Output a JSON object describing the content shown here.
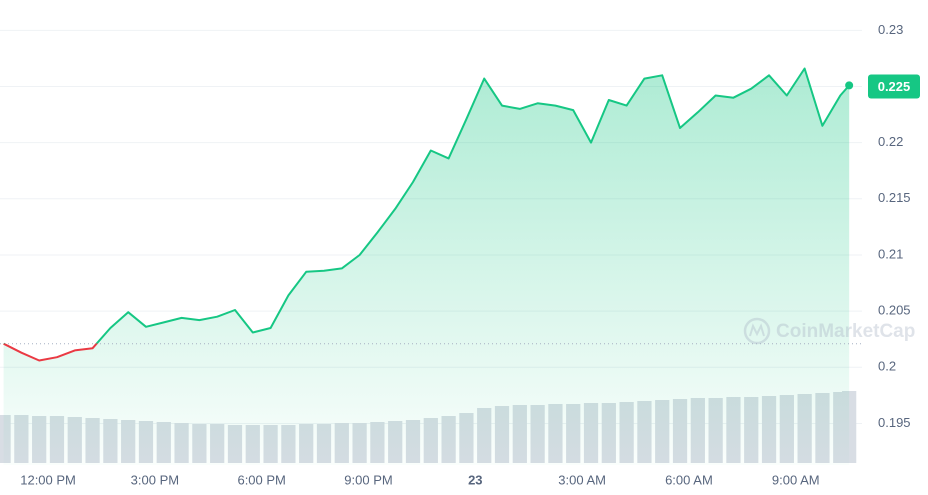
{
  "chart_data": {
    "type": "line",
    "x": [
      -1.25,
      -0.75,
      -0.25,
      0.25,
      0.75,
      1.25,
      1.75,
      2.25,
      2.75,
      3.25,
      3.75,
      4.25,
      4.75,
      5.25,
      5.75,
      6.25,
      6.75,
      7.25,
      7.75,
      8.25,
      8.75,
      9.25,
      9.75,
      10.25,
      10.75,
      11.25,
      11.75,
      12.25,
      12.75,
      13.25,
      13.75,
      14.25,
      14.75,
      15.25,
      15.75,
      16.25,
      16.75,
      17.25,
      17.75,
      18.25,
      18.75,
      19.25,
      19.75,
      20.25,
      20.75,
      21.25,
      21.75,
      22.25,
      22.5
    ],
    "series": [
      {
        "values": [
          0.2021,
          0.2013,
          0.2006,
          0.2009,
          0.2015,
          0.2017,
          0.2035,
          0.2049,
          0.2036,
          0.204,
          0.2044,
          0.2042,
          0.2045,
          0.2051,
          0.2031,
          0.2035,
          0.2064,
          0.2085,
          0.2086,
          0.2088,
          0.21,
          0.212,
          0.2141,
          0.2165,
          0.2193,
          0.2186,
          0.2221,
          0.2257,
          0.2233,
          0.223,
          0.2235,
          0.2233,
          0.2229,
          0.22,
          0.2238,
          0.2233,
          0.2257,
          0.226,
          0.2213,
          0.2227,
          0.2242,
          0.224,
          0.2248,
          0.226,
          0.2242,
          0.2266,
          0.2215,
          0.2242,
          0.2251
        ],
        "color": "#16c784",
        "below_color": "#ea3943"
      },
      {
        "values": [
          48,
          48,
          47,
          47,
          46,
          45,
          44,
          43,
          42,
          41,
          40,
          39,
          39,
          38,
          38,
          38,
          38,
          39,
          39,
          40,
          40,
          41,
          42,
          43,
          45,
          47,
          50,
          55,
          57,
          58,
          58,
          59,
          59,
          60,
          60,
          61,
          62,
          63,
          64,
          65,
          65,
          66,
          66,
          67,
          68,
          69,
          70,
          71,
          72
        ],
        "color": "#d8dde4"
      }
    ],
    "reference": 0.2021,
    "current_price": 0.225,
    "xlim": [
      -1.35,
      22.58
    ],
    "xticks": [
      {
        "value": 0,
        "label": "12:00 PM"
      },
      {
        "value": 3,
        "label": "3:00 PM"
      },
      {
        "value": 6,
        "label": "6:00 PM"
      },
      {
        "value": 9,
        "label": "9:00 PM"
      },
      {
        "value": 12,
        "label": "23"
      },
      {
        "value": 15,
        "label": "3:00 AM"
      },
      {
        "value": 18,
        "label": "6:00 AM"
      },
      {
        "value": 21,
        "label": "9:00 AM"
      }
    ],
    "ylim": [
      0.1913,
      0.2327
    ],
    "yticks": [
      0.195,
      0.2,
      0.205,
      0.21,
      0.215,
      0.22,
      0.225,
      0.23
    ],
    "grid": true,
    "watermark": "CoinMarketCap"
  }
}
